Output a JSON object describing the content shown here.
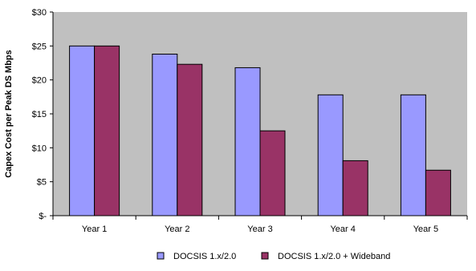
{
  "chart_data": {
    "type": "bar",
    "title": "",
    "xlabel": "",
    "ylabel": "Capex Cost per Peak DS Mbps",
    "categories": [
      "Year 1",
      "Year 2",
      "Year 3",
      "Year 4",
      "Year 5"
    ],
    "series": [
      {
        "name": "DOCSIS 1.x/2.0",
        "values": [
          25,
          23.8,
          21.8,
          17.8,
          17.8
        ],
        "color": "#9999ff"
      },
      {
        "name": "DOCSIS 1.x/2.0 + Wideband",
        "values": [
          25,
          22.3,
          12.5,
          8.1,
          6.7
        ],
        "color": "#993366"
      }
    ],
    "ylim": [
      0,
      30
    ],
    "yticks": [
      0,
      5,
      10,
      15,
      20,
      25,
      30
    ],
    "ytick_labels": [
      "$-",
      "$5",
      "$10",
      "$15",
      "$20",
      "$25",
      "$30"
    ],
    "plot_background": "#c0c0c0",
    "grid": false,
    "legend_position": "bottom"
  }
}
